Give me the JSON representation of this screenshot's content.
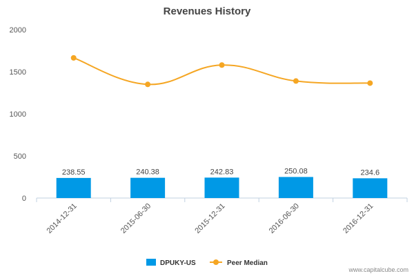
{
  "chart_data": {
    "type": "bar",
    "title": "Revenues History",
    "categories": [
      "2014-12-31",
      "2015-06-30",
      "2015-12-31",
      "2016-06-30",
      "2016-12-31"
    ],
    "series": [
      {
        "name": "DPUKY-US",
        "kind": "bar",
        "color": "#0099e6",
        "values": [
          238.55,
          240.38,
          242.83,
          250.08,
          234.6
        ],
        "labels": [
          "238.55",
          "240.38",
          "242.83",
          "250.08",
          "234.6"
        ]
      },
      {
        "name": "Peer Median",
        "kind": "line",
        "color": "#f5a623",
        "values": [
          1665,
          1350,
          1580,
          1390,
          1365
        ]
      }
    ],
    "yticks": [
      "0",
      "500",
      "1000",
      "1500",
      "2000"
    ],
    "ylim": [
      0,
      2000
    ],
    "grid": false,
    "legend_position": "bottom"
  },
  "credit": "www.capitalcube.com"
}
